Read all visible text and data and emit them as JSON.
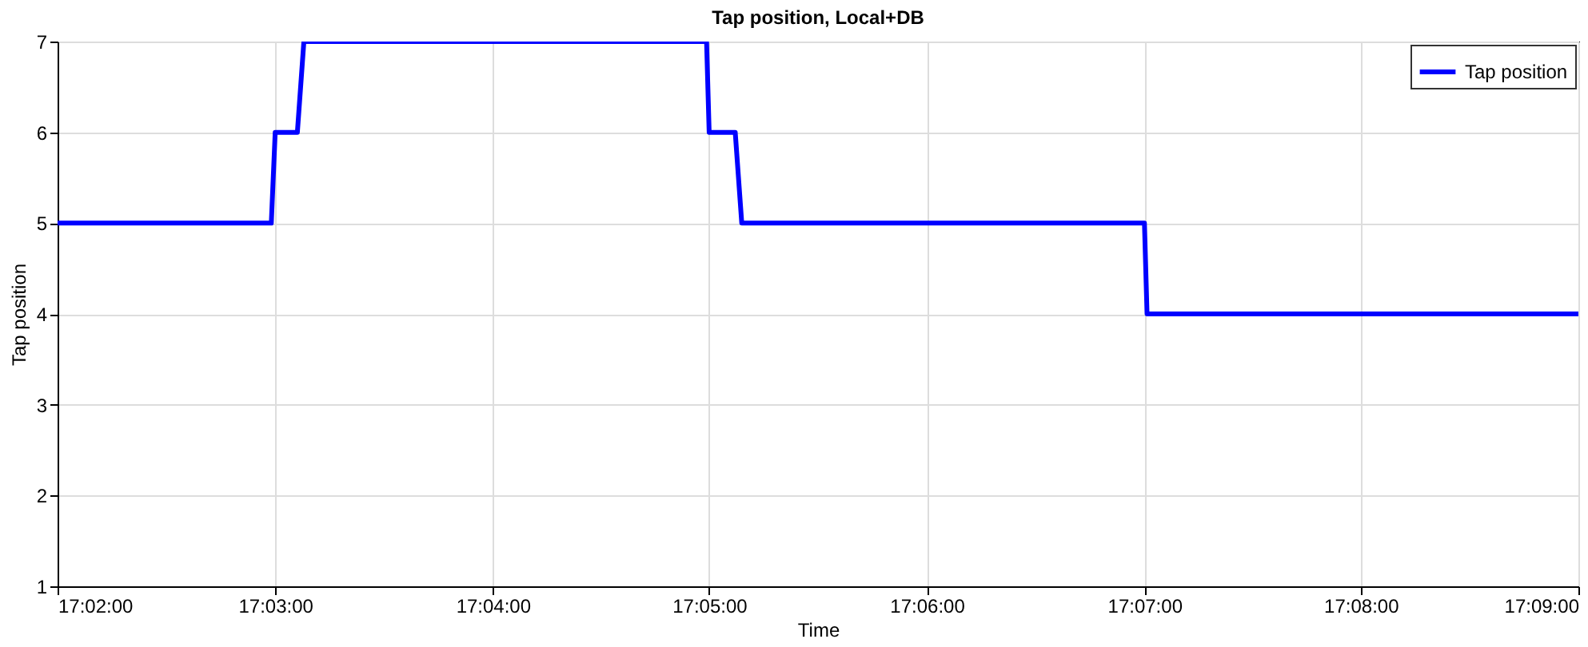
{
  "chart_data": {
    "type": "line",
    "title": "Tap position, Local+DB",
    "xlabel": "Time",
    "ylabel": "Tap position",
    "x": [
      17.0333,
      17.0497,
      17.05,
      17.0517,
      17.0522,
      17.0831,
      17.0833,
      17.0853,
      17.0858,
      17.1167,
      17.1169,
      17.15
    ],
    "series": [
      {
        "name": "Tap position",
        "color": "#0000ff",
        "values": [
          5,
          5,
          6,
          6,
          7,
          7,
          6,
          6,
          5,
          5,
          4,
          4
        ]
      }
    ],
    "xlim": [
      17.0333,
      17.15
    ],
    "xticks": [
      {
        "value": 17.0333,
        "label": "17:02:00"
      },
      {
        "value": 17.05,
        "label": "17:03:00"
      },
      {
        "value": 17.0667,
        "label": "17:04:00"
      },
      {
        "value": 17.0833,
        "label": "17:05:00"
      },
      {
        "value": 17.1,
        "label": "17:06:00"
      },
      {
        "value": 17.1167,
        "label": "17:07:00"
      },
      {
        "value": 17.1333,
        "label": "17:08:00"
      },
      {
        "value": 17.15,
        "label": "17:09:00"
      }
    ],
    "ylim": [
      1,
      7
    ],
    "yticks": [
      1,
      2,
      3,
      4,
      5,
      6,
      7
    ],
    "grid": true,
    "legend": "top right",
    "marker": "none",
    "line_style": "solid"
  }
}
